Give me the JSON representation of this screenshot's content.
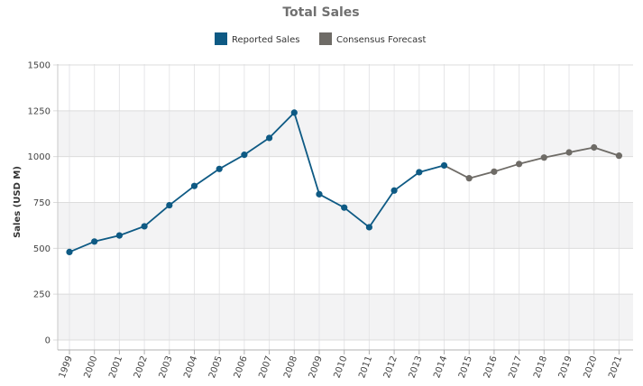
{
  "chart_data": {
    "type": "line",
    "title": "Total Sales",
    "ylabel": "Sales  (USD M)",
    "xlabel": "",
    "ylim": [
      0,
      1500
    ],
    "yticks": [
      0,
      250,
      500,
      750,
      1000,
      1250,
      1500
    ],
    "grid": true,
    "legend_position": "top",
    "categories": [
      "1999",
      "2000",
      "2001",
      "2002",
      "2003",
      "2004",
      "2005",
      "2006",
      "2007",
      "2008",
      "2009",
      "2010",
      "2011",
      "2012",
      "2013",
      "2014",
      "2015",
      "2016",
      "2017",
      "2018",
      "2019",
      "2020",
      "2021"
    ],
    "series": [
      {
        "name": "Reported Sales",
        "color": "#0e5a84",
        "points": [
          {
            "x": "1999",
            "y": 480
          },
          {
            "x": "2000",
            "y": 537
          },
          {
            "x": "2001",
            "y": 570
          },
          {
            "x": "2002",
            "y": 620
          },
          {
            "x": "2003",
            "y": 735
          },
          {
            "x": "2004",
            "y": 840
          },
          {
            "x": "2005",
            "y": 933
          },
          {
            "x": "2006",
            "y": 1010
          },
          {
            "x": "2007",
            "y": 1102
          },
          {
            "x": "2008",
            "y": 1240
          },
          {
            "x": "2009",
            "y": 795
          },
          {
            "x": "2010",
            "y": 722
          },
          {
            "x": "2011",
            "y": 615
          },
          {
            "x": "2012",
            "y": 815
          },
          {
            "x": "2013",
            "y": 915
          },
          {
            "x": "2014",
            "y": 952
          }
        ]
      },
      {
        "name": "Consensus Forecast",
        "color": "#6e6b66",
        "points": [
          {
            "x": "2015",
            "y": 882
          },
          {
            "x": "2016",
            "y": 918
          },
          {
            "x": "2017",
            "y": 960
          },
          {
            "x": "2018",
            "y": 995
          },
          {
            "x": "2019",
            "y": 1023
          },
          {
            "x": "2020",
            "y": 1050
          },
          {
            "x": "2021",
            "y": 1005
          }
        ]
      }
    ]
  }
}
